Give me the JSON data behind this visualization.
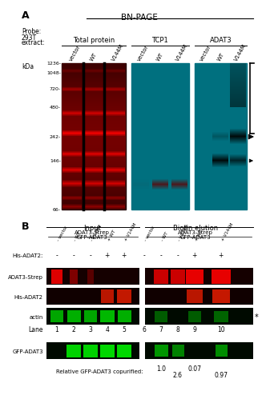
{
  "title_A": "BN-PAGE",
  "panel_A_label": "A",
  "panel_B_label": "B",
  "gel1_title": "Total protein",
  "gel2_title": "TCP1",
  "gel3_title": "ADAT3",
  "col_labels": [
    "vector",
    "WT",
    "V144M"
  ],
  "input_label": "Input",
  "biotin_label": "Biotin elution",
  "his_adat2_label": "His-ADAT2:",
  "adat3_strep_row": "ADAT3-Strep",
  "his_adat2_row": "His-ADAT2",
  "actin_row": "actin",
  "lane_label": "Lane",
  "gfp_adat3_row": "GFP-ADAT3",
  "relative_label": "Relative GFP-ADAT3 copurified:",
  "rel_values": [
    "1.0",
    "2.6",
    "0.07",
    "0.97"
  ],
  "lane_numbers": [
    "1",
    "2",
    "3",
    "4",
    "5",
    "6",
    "7",
    "8",
    "9",
    "10"
  ],
  "bg_color": "#ffffff"
}
